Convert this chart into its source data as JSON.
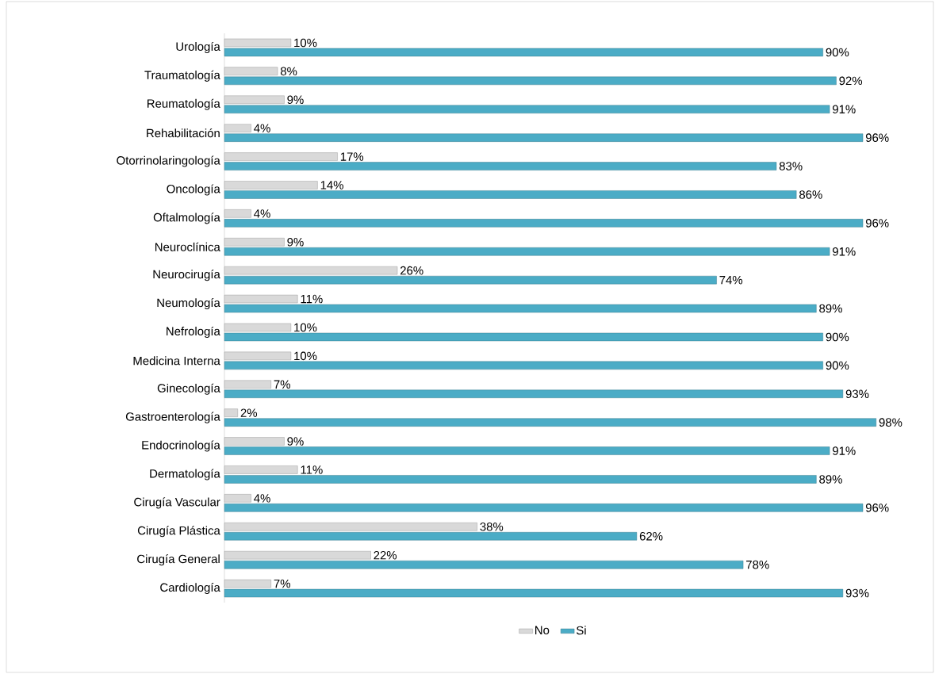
{
  "chart_data": {
    "type": "bar",
    "orientation": "horizontal",
    "legend": "bottom",
    "categories": [
      "Urología",
      "Traumatología",
      "Reumatología",
      "Rehabilitación",
      "Otorrinolaringología",
      "Oncología",
      "Oftalmología",
      "Neuroclínica",
      "Neurocirugía",
      "Neumología",
      "Nefrología",
      "Medicina Interna",
      "Ginecología",
      "Gastroenterología",
      "Endocrinología",
      "Dermatología",
      "Cirugía Vascular",
      "Cirugía Plástica",
      "Cirugía General",
      "Cardiología"
    ],
    "series": [
      {
        "name": "No",
        "color": "#d9d9d9",
        "values": [
          10,
          8,
          9,
          4,
          17,
          14,
          4,
          9,
          26,
          11,
          10,
          10,
          7,
          2,
          9,
          11,
          4,
          38,
          22,
          7
        ],
        "value_labels": [
          "10%",
          "8%",
          "9%",
          "4%",
          "17%",
          "14%",
          "4%",
          "9%",
          "26%",
          "11%",
          "10%",
          "10%",
          "7%",
          "2%",
          "9%",
          "11%",
          "4%",
          "38%",
          "22%",
          "7%"
        ]
      },
      {
        "name": "Si",
        "color": "#4bacc6",
        "values": [
          90,
          92,
          91,
          96,
          83,
          86,
          96,
          91,
          74,
          89,
          90,
          90,
          93,
          98,
          91,
          89,
          96,
          62,
          78,
          93
        ],
        "value_labels": [
          "90%",
          "92%",
          "91%",
          "96%",
          "83%",
          "86%",
          "96%",
          "91%",
          "74%",
          "89%",
          "90%",
          "90%",
          "93%",
          "98%",
          "91%",
          "89%",
          "96%",
          "62%",
          "78%",
          "93%"
        ]
      }
    ]
  }
}
